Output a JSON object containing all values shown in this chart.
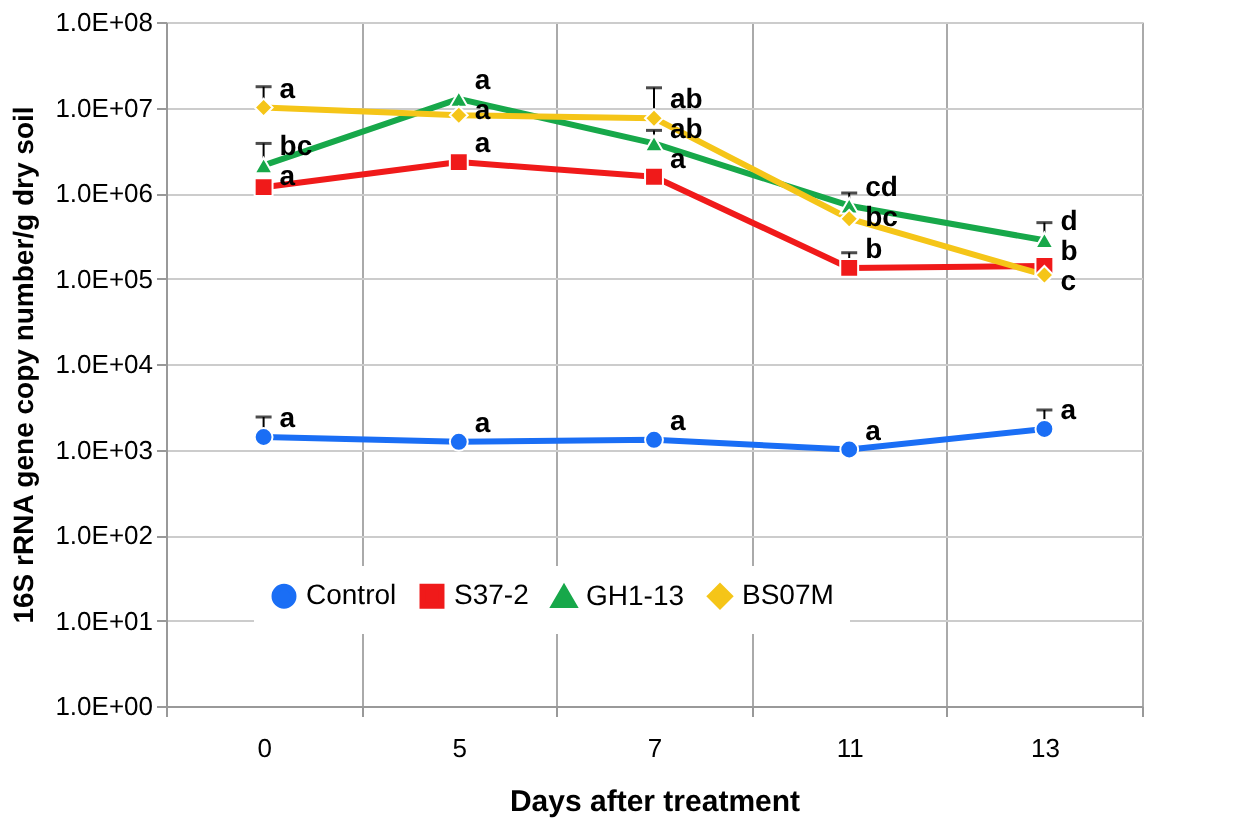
{
  "chart_data": {
    "type": "line",
    "xlabel": "Days after treatment",
    "ylabel": "16S rRNA gene copy number/g dry soil",
    "categories": [
      "0",
      "5",
      "7",
      "11",
      "13"
    ],
    "series": [
      {
        "name": "Control",
        "color": "#1a6ef5",
        "marker": "circle",
        "values": [
          1400,
          1230,
          1300,
          1000,
          1740
        ],
        "errors": [
          [
            1400,
            2400
          ],
          null,
          null,
          null,
          [
            1740,
            2900
          ]
        ]
      },
      {
        "name": "S37-2",
        "color": "#f01a1a",
        "marker": "square",
        "values": [
          1170000,
          2300000,
          1550000,
          133000,
          140000
        ],
        "errors": [
          null,
          null,
          null,
          [
            133000,
            200000
          ],
          null
        ]
      },
      {
        "name": "GH1-13",
        "color": "#17a84a",
        "marker": "triangle",
        "values": [
          2100000,
          12600000,
          3800000,
          710000,
          280000
        ],
        "errors": [
          [
            2100000,
            3800000
          ],
          null,
          [
            3800000,
            5400000
          ],
          [
            710000,
            1000000
          ],
          [
            280000,
            450000
          ]
        ]
      },
      {
        "name": "BS07M",
        "color": "#f5c518",
        "marker": "diamond",
        "values": [
          10000000,
          8100000,
          7500000,
          500000,
          110000
        ],
        "errors": [
          [
            10000000,
            17500000
          ],
          null,
          [
            7500000,
            17000000
          ],
          null,
          null
        ]
      }
    ],
    "log": "y",
    "ylim": [
      1,
      100000000
    ],
    "yticks": [
      {
        "value": 1,
        "label": "1.0E+00"
      },
      {
        "value": 10,
        "label": "1.0E+01"
      },
      {
        "value": 100,
        "label": "1.0E+02"
      },
      {
        "value": 1000,
        "label": "1.0E+03"
      },
      {
        "value": 10000,
        "label": "1.0E+04"
      },
      {
        "value": 100000,
        "label": "1.0E+05"
      },
      {
        "value": 1000000,
        "label": "1.0E+06"
      },
      {
        "value": 10000000,
        "label": "1.0E+07"
      },
      {
        "value": 100000000,
        "label": "1.0E+08"
      }
    ],
    "grid": true,
    "legend": "bottom",
    "annotations": [
      {
        "text": "a",
        "x": "0",
        "y": 10000000
      },
      {
        "text": "bc",
        "x": "0",
        "y": 2100000
      },
      {
        "text": "a",
        "x": "0",
        "y": 1170000
      },
      {
        "text": "a",
        "x": "5",
        "y": 12600000
      },
      {
        "text": "a",
        "x": "5",
        "y": 8100000
      },
      {
        "text": "a",
        "x": "5",
        "y": 2300000
      },
      {
        "text": "ab",
        "x": "7",
        "y": 7500000
      },
      {
        "text": "ab",
        "x": "7",
        "y": 3800000
      },
      {
        "text": "a",
        "x": "7",
        "y": 1550000
      },
      {
        "text": "cd",
        "x": "11",
        "y": 710000
      },
      {
        "text": "bc",
        "x": "11",
        "y": 500000
      },
      {
        "text": "b",
        "x": "11",
        "y": 133000
      },
      {
        "text": "d",
        "x": "13",
        "y": 280000
      },
      {
        "text": "b",
        "x": "13",
        "y": 140000
      },
      {
        "text": "c",
        "x": "13",
        "y": 110000
      },
      {
        "text": "a",
        "x": "0",
        "y": 1400
      },
      {
        "text": "a",
        "x": "5",
        "y": 1230
      },
      {
        "text": "a",
        "x": "7",
        "y": 1300
      },
      {
        "text": "a",
        "x": "11",
        "y": 1000
      },
      {
        "text": "a",
        "x": "13",
        "y": 1740
      }
    ]
  }
}
